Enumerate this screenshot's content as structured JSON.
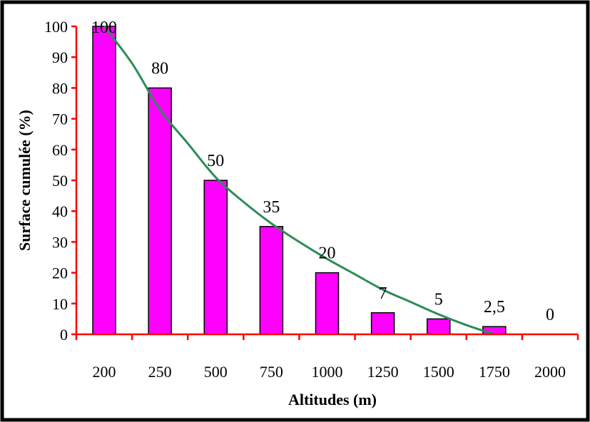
{
  "chart_data": {
    "type": "bar",
    "categories": [
      "200",
      "250",
      "500",
      "750",
      "1000",
      "1250",
      "1500",
      "1750",
      "2000"
    ],
    "values": [
      100,
      80,
      50,
      35,
      20,
      7,
      5,
      2.5,
      0
    ],
    "data_labels": [
      "100",
      "80",
      "50",
      "35",
      "20",
      "7",
      "5",
      "2,5",
      "0"
    ],
    "title": "",
    "xlabel": "Altitudes (m)",
    "ylabel": "Surface cumulée (%)",
    "ylim": [
      0,
      100
    ],
    "yticks": [
      "0",
      "10",
      "20",
      "30",
      "40",
      "50",
      "60",
      "70",
      "80",
      "90",
      "100"
    ],
    "grid": false,
    "legend": "none",
    "trendline": {
      "type": "smooth",
      "color": "#2e8b57",
      "points": [
        [
          0,
          100
        ],
        [
          0.5,
          88
        ],
        [
          1,
          73
        ],
        [
          1.5,
          62
        ],
        [
          2,
          51
        ],
        [
          2.5,
          43
        ],
        [
          3,
          36
        ],
        [
          3.5,
          30
        ],
        [
          4,
          24.5
        ],
        [
          4.5,
          19.5
        ],
        [
          5,
          14.5
        ],
        [
          5.5,
          10.5
        ],
        [
          6,
          6.5
        ],
        [
          6.5,
          3
        ],
        [
          7,
          0
        ]
      ]
    },
    "colors": {
      "bar": "#ff00ff",
      "bar_stroke": "#000000",
      "axis": "#ff0000",
      "trend": "#2e8b57",
      "frame": "#000000"
    }
  }
}
